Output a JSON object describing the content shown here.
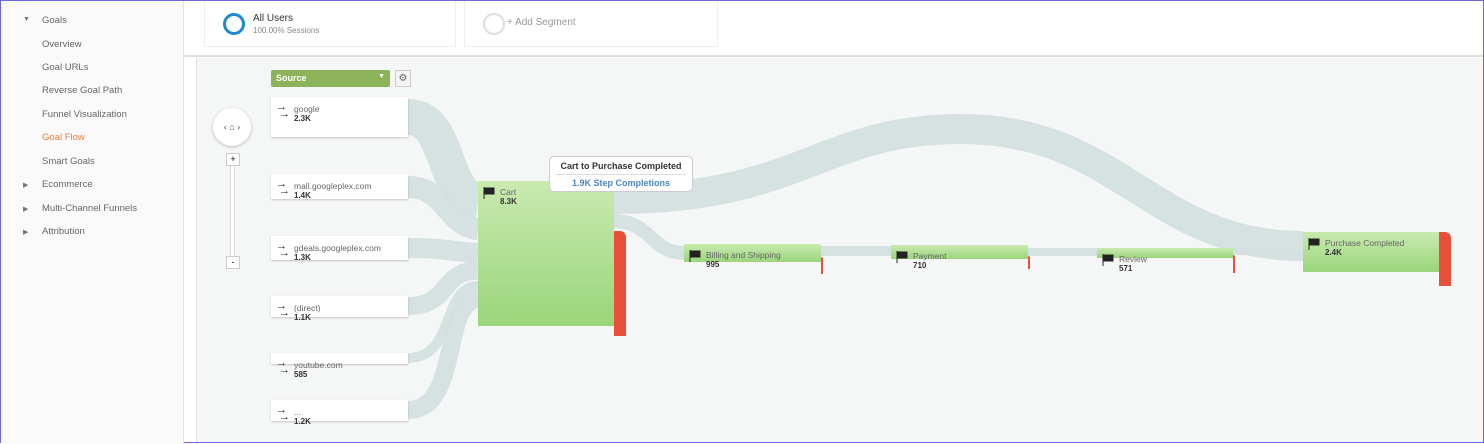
{
  "sidebar": {
    "items": [
      {
        "label": "Goals",
        "type": "expanded"
      },
      {
        "label": "Overview"
      },
      {
        "label": "Goal URLs"
      },
      {
        "label": "Reverse Goal Path"
      },
      {
        "label": "Funnel Visualization"
      },
      {
        "label": "Goal Flow",
        "active": true
      },
      {
        "label": "Smart Goals"
      },
      {
        "label": "Ecommerce",
        "type": "collapsed"
      },
      {
        "label": "Multi-Channel Funnels",
        "type": "collapsed"
      },
      {
        "label": "Attribution",
        "type": "collapsed"
      }
    ]
  },
  "segments": {
    "all_users": "All Users",
    "all_users_sub": "100.00% Sessions",
    "add": "+ Add Segment"
  },
  "flow": {
    "dimension": "Source",
    "sources": [
      {
        "name": "google",
        "value": "2.3K"
      },
      {
        "name": "mall.googleplex.com",
        "value": "1.4K"
      },
      {
        "name": "gdeals.googleplex.com",
        "value": "1.3K"
      },
      {
        "name": "(direct)",
        "value": "1.1K"
      },
      {
        "name": "youtube.com",
        "value": "585"
      },
      {
        "name": "...",
        "value": "1.2K"
      }
    ],
    "steps": [
      {
        "name": "Cart",
        "value": "8.3K"
      },
      {
        "name": "Billing and Shipping",
        "value": "995"
      },
      {
        "name": "Payment",
        "value": "710"
      },
      {
        "name": "Review",
        "value": "571"
      },
      {
        "name": "Purchase Completed",
        "value": "2.4K"
      }
    ],
    "tooltip": {
      "title": "Cart to Purchase Completed",
      "value": "1.9K Step Completions"
    },
    "colors": {
      "step": "#9ad57a",
      "drop": "#e8503a",
      "flow": "#d3dfe0",
      "accent": "#f27b35",
      "segment": "#1a8ccd"
    }
  }
}
